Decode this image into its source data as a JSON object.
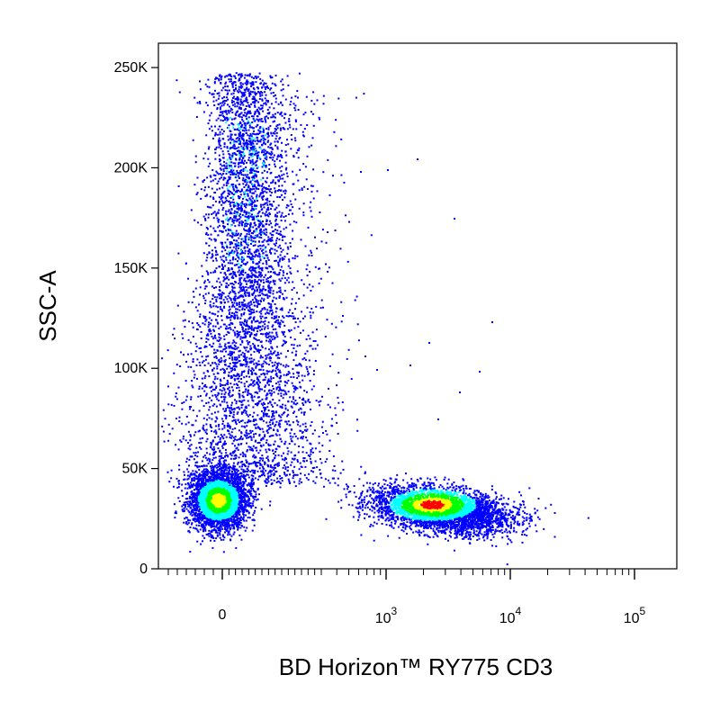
{
  "chart_data": {
    "type": "scatter",
    "title": "",
    "xlabel": "BD Horizon™ RY775 CD3",
    "ylabel": "SSC-A",
    "x_scale": "biexponential",
    "ylim": [
      0,
      262144
    ],
    "x_ticks": [
      {
        "value": 0,
        "label": "0",
        "sup": ""
      },
      {
        "value": 1000,
        "label": "10",
        "sup": "3"
      },
      {
        "value": 10000,
        "label": "10",
        "sup": "4"
      },
      {
        "value": 100000,
        "label": "10",
        "sup": "5"
      }
    ],
    "y_ticks": [
      {
        "value": 0,
        "label": "0"
      },
      {
        "value": 50000,
        "label": "50K"
      },
      {
        "value": 100000,
        "label": "100K"
      },
      {
        "value": 150000,
        "label": "150K"
      },
      {
        "value": 200000,
        "label": "200K"
      },
      {
        "value": 250000,
        "label": "250K"
      }
    ],
    "grid": false,
    "legend": "none",
    "color_scale": [
      "#0000ff",
      "#00ffff",
      "#00ff00",
      "#ffff00",
      "#ff0000"
    ],
    "populations": [
      {
        "x": 0,
        "y": 35000,
        "density": "high"
      },
      {
        "x": 2000,
        "y": 32000,
        "density": "high"
      },
      {
        "x": 100,
        "y": 170000,
        "density": "medium"
      }
    ]
  }
}
